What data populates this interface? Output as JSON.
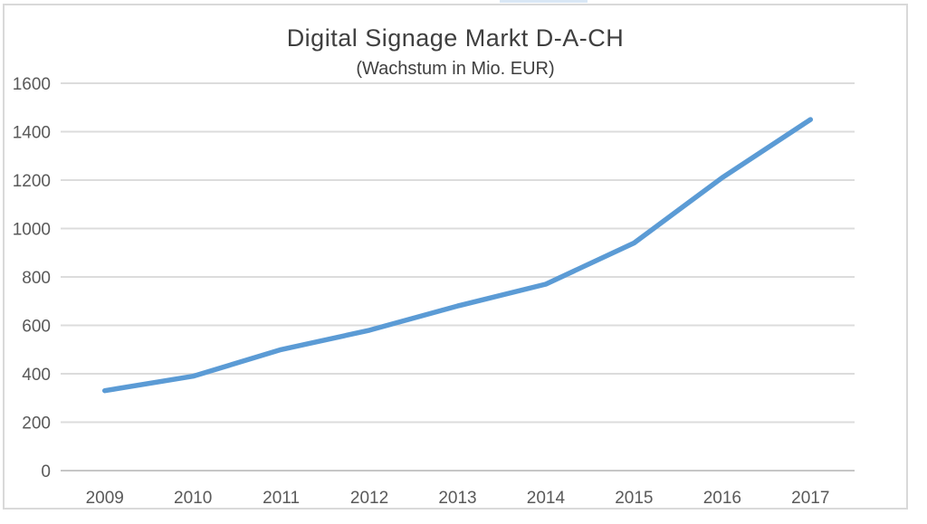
{
  "page": {
    "background": "#ffffff",
    "top_artifact_color": "#d9e7f5"
  },
  "chart_data": {
    "type": "line",
    "title": "Digital Signage Markt D-A-CH",
    "subtitle": "(Wachstum in Mio. EUR)",
    "categories": [
      "2009",
      "2010",
      "2011",
      "2012",
      "2013",
      "2014",
      "2015",
      "2016",
      "2017"
    ],
    "values": [
      330,
      390,
      500,
      580,
      680,
      770,
      940,
      1210,
      1450
    ],
    "xlabel": "",
    "ylabel": "",
    "ylim": [
      0,
      1600
    ],
    "ytick_step": 200,
    "ytick_labels": [
      "0",
      "200",
      "400",
      "600",
      "800",
      "1000",
      "1200",
      "1400",
      "1600"
    ],
    "grid": "horizontal-only",
    "legend": "none",
    "markers": "none",
    "colors": {
      "line": "#5B9BD5",
      "gridline": "#dcdcdc",
      "axis_line": "#c6c6c6",
      "tick_text": "#595959",
      "title_text": "#3f3f3f"
    }
  }
}
